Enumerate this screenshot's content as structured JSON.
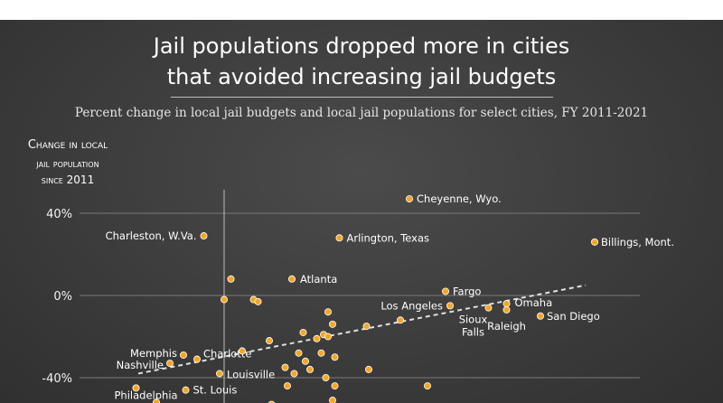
{
  "title": {
    "line1": "Jail populations dropped more in cities",
    "line2": "that avoided increasing jail budgets"
  },
  "subtitle": "Percent change in local jail budgets and local jail populations for select cities, FY 2011-2021",
  "chart_data": {
    "type": "scatter",
    "title": "Jail populations dropped more in cities that avoided increasing jail budgets",
    "subtitle": "Percent change in local jail budgets and local jail populations for select cities, FY 2011-2021",
    "ylabel_lines": [
      "Change in local",
      "jail population",
      "since 2011"
    ],
    "xlabel": "",
    "ylim": [
      -60,
      60
    ],
    "xlim": [
      -40,
      190
    ],
    "yticks": [
      {
        "value": 40,
        "label": "40%"
      },
      {
        "value": 0,
        "label": "0%"
      },
      {
        "value": -40,
        "label": "-40%"
      }
    ],
    "grid": true,
    "vline_at_x": 0,
    "trendline": {
      "style": "dashed",
      "from": [
        -38,
        -38
      ],
      "to": [
        160,
        5
      ]
    },
    "points": [
      {
        "x": 82,
        "y": 47,
        "label": "Cheyenne, Wyo."
      },
      {
        "x": -9,
        "y": 29,
        "label": "Charleston, W.Va."
      },
      {
        "x": 51,
        "y": 28,
        "label": "Arlington, Texas"
      },
      {
        "x": 164,
        "y": 26,
        "label": "Billings, Mont."
      },
      {
        "x": 30,
        "y": 8,
        "label": "Atlanta"
      },
      {
        "x": 98,
        "y": 2,
        "label": "Fargo"
      },
      {
        "x": 100,
        "y": -5,
        "label": "Los Angeles"
      },
      {
        "x": 117,
        "y": -6,
        "label": "Sioux Falls"
      },
      {
        "x": 125,
        "y": -4,
        "label": "Omaha"
      },
      {
        "x": 125,
        "y": -7,
        "label": "Raleigh"
      },
      {
        "x": 140,
        "y": -10,
        "label": "San Diego"
      },
      {
        "x": -18,
        "y": -29,
        "label": "Memphis"
      },
      {
        "x": -12,
        "y": -31,
        "label": "Charlotte"
      },
      {
        "x": -24,
        "y": -33,
        "label": "Nashville"
      },
      {
        "x": -2,
        "y": -38,
        "label": "Louisville"
      },
      {
        "x": -17,
        "y": -46,
        "label": "St. Louis"
      },
      {
        "x": -39,
        "y": -45,
        "label": "Philadelphia"
      },
      {
        "x": 3,
        "y": 8,
        "label": ""
      },
      {
        "x": 0,
        "y": -2,
        "label": ""
      },
      {
        "x": 13,
        "y": -2,
        "label": ""
      },
      {
        "x": 15,
        "y": -3,
        "label": ""
      },
      {
        "x": 46,
        "y": -8,
        "label": ""
      },
      {
        "x": 48,
        "y": -14,
        "label": ""
      },
      {
        "x": 35,
        "y": -18,
        "label": ""
      },
      {
        "x": 44,
        "y": -19,
        "label": ""
      },
      {
        "x": 46,
        "y": -20,
        "label": ""
      },
      {
        "x": 41,
        "y": -21,
        "label": ""
      },
      {
        "x": 20,
        "y": -22,
        "label": ""
      },
      {
        "x": 63,
        "y": -15,
        "label": ""
      },
      {
        "x": 78,
        "y": -12,
        "label": ""
      },
      {
        "x": 8,
        "y": -27,
        "label": ""
      },
      {
        "x": 33,
        "y": -28,
        "label": ""
      },
      {
        "x": 43,
        "y": -28,
        "label": ""
      },
      {
        "x": 49,
        "y": -30,
        "label": ""
      },
      {
        "x": 36,
        "y": -32,
        "label": ""
      },
      {
        "x": 27,
        "y": -35,
        "label": ""
      },
      {
        "x": 38,
        "y": -36,
        "label": ""
      },
      {
        "x": 64,
        "y": -36,
        "label": ""
      },
      {
        "x": 31,
        "y": -38,
        "label": ""
      },
      {
        "x": 45,
        "y": -40,
        "label": ""
      },
      {
        "x": 28,
        "y": -44,
        "label": ""
      },
      {
        "x": 49,
        "y": -44,
        "label": ""
      },
      {
        "x": 90,
        "y": -44,
        "label": ""
      },
      {
        "x": -30,
        "y": -52,
        "label": ""
      },
      {
        "x": 48,
        "y": -51,
        "label": ""
      },
      {
        "x": 21,
        "y": -53,
        "label": ""
      }
    ]
  },
  "colors": {
    "dot_fill": "#f5a623",
    "dot_stroke": "#ffffff",
    "gridline": "#7a7a7a",
    "axis": "#bdbdbd",
    "trendline": "#e0e0e0"
  }
}
